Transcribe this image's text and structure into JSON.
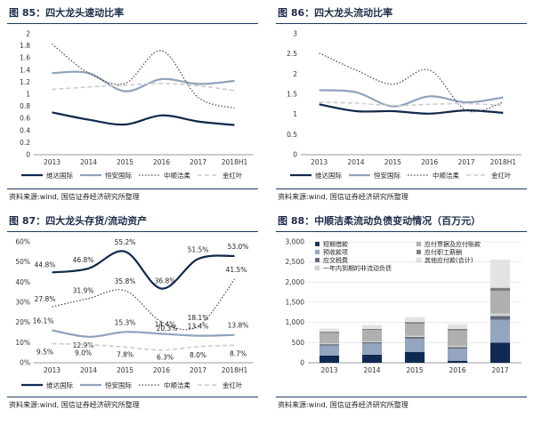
{
  "source_text": "资料来源:wind, 国信证券经济研究所整理",
  "colors": {
    "navy": "#10284d",
    "steel": "#8fa3bd",
    "dotted": "#444444",
    "dashed": "#cccccc"
  },
  "chart_data": [
    {
      "title": "图 85：四大龙头速动比率",
      "type": "line",
      "x": [
        "2013",
        "2014",
        "2015",
        "2016",
        "2017",
        "2018H1"
      ],
      "ylim": [
        0,
        2
      ],
      "yticks": [
        "0",
        "0.2",
        "0.4",
        "0.6",
        "0.8",
        "1",
        "1.2",
        "1.4",
        "1.6",
        "1.8",
        "2"
      ],
      "series": [
        {
          "name": "维达国际",
          "values": [
            0.7,
            0.58,
            0.5,
            0.65,
            0.55,
            0.49
          ]
        },
        {
          "name": "恒安国际",
          "values": [
            1.35,
            1.35,
            1.05,
            1.25,
            1.17,
            1.22
          ]
        },
        {
          "name": "中顺洁柔",
          "values": [
            1.83,
            1.35,
            1.18,
            1.72,
            0.95,
            0.77
          ]
        },
        {
          "name": "金红叶",
          "values": [
            1.08,
            1.12,
            1.15,
            1.18,
            1.14,
            1.06
          ]
        }
      ]
    },
    {
      "title": "图 86：四大龙头流动比率",
      "type": "line",
      "x": [
        "2013",
        "2014",
        "2015",
        "2016",
        "2017",
        "2018H1"
      ],
      "ylim": [
        0,
        3
      ],
      "yticks": [
        "0",
        "0.5",
        "1",
        "1.5",
        "2",
        "2.5",
        "3"
      ],
      "series": [
        {
          "name": "维达国际",
          "values": [
            1.25,
            1.08,
            1.08,
            1.02,
            1.1,
            1.04
          ]
        },
        {
          "name": "恒安国际",
          "values": [
            1.6,
            1.55,
            1.2,
            1.45,
            1.3,
            1.42
          ]
        },
        {
          "name": "中顺洁柔",
          "values": [
            2.52,
            2.1,
            1.75,
            2.1,
            1.1,
            1.3
          ]
        },
        {
          "name": "金红叶",
          "values": [
            1.3,
            1.28,
            1.22,
            1.25,
            1.27,
            1.22
          ]
        }
      ]
    },
    {
      "title": "图 87：四大龙头存货/流动资产",
      "type": "line",
      "x": [
        "2013",
        "2014",
        "2015",
        "2016",
        "2017",
        "2018H1"
      ],
      "ylim": [
        0,
        60
      ],
      "yticks": [
        "0%",
        "10%",
        "20%",
        "30%",
        "40%",
        "50%",
        "60%"
      ],
      "series": [
        {
          "name": "维达国际",
          "values": [
            44.8,
            46.8,
            55.2,
            36.8,
            51.5,
            53.0
          ],
          "labels": [
            "44.8%",
            "46.8%",
            "55.2%",
            "36.8%",
            "51.5%",
            "53.0%"
          ]
        },
        {
          "name": "恒安国际",
          "values": [
            16.1,
            12.9,
            15.3,
            14.4,
            13.4,
            13.8
          ],
          "labels": [
            "16.1%",
            "12.9%",
            "15.3%",
            "14.4%",
            "13.4%",
            "13.8%"
          ]
        },
        {
          "name": "中顺洁柔",
          "values": [
            27.8,
            31.9,
            35.8,
            20.3,
            18.1,
            41.5
          ],
          "labels": [
            "27.8%",
            "31.9%",
            "35.8%",
            "20.3%",
            "18.1%",
            "41.5%"
          ]
        },
        {
          "name": "金红叶",
          "values": [
            9.5,
            9.0,
            7.8,
            6.3,
            8.0,
            8.7
          ],
          "labels": [
            "9.5%",
            "9.0%",
            "7.8%",
            "6.3%",
            "8.0%",
            "8.7%"
          ]
        }
      ]
    },
    {
      "title": "图 88：中顺洁柔流动负债变动情况（百万元）",
      "type": "bar",
      "categories": [
        "2013",
        "2014",
        "2015",
        "2016",
        "2017"
      ],
      "ylim": [
        0,
        3000
      ],
      "yticks": [
        "0",
        "500",
        "1,000",
        "1,500",
        "2,000",
        "2,500",
        "3,000"
      ],
      "series": [
        {
          "name": "短期借款",
          "color": "#0e2a52",
          "values": [
            180,
            200,
            270,
            50,
            500
          ]
        },
        {
          "name": "预收款项",
          "color": "#93a5bf",
          "values": [
            250,
            280,
            330,
            300,
            570
          ]
        },
        {
          "name": "应交税费",
          "color": "#5f6a78",
          "values": [
            30,
            30,
            40,
            40,
            90
          ]
        },
        {
          "name": "一年内到期的非流动负债",
          "color": "#d3d3d3",
          "values": [
            20,
            20,
            30,
            30,
            60
          ]
        },
        {
          "name": "应付票据及应付账款",
          "color": "#b0b0b0",
          "values": [
            260,
            280,
            300,
            380,
            560
          ]
        },
        {
          "name": "应付职工薪酬",
          "color": "#7e7e7e",
          "values": [
            30,
            30,
            40,
            40,
            80
          ]
        },
        {
          "name": "其他应付款(合计)",
          "color": "#e3e3e3",
          "values": [
            80,
            100,
            120,
            120,
            700
          ]
        }
      ]
    }
  ]
}
